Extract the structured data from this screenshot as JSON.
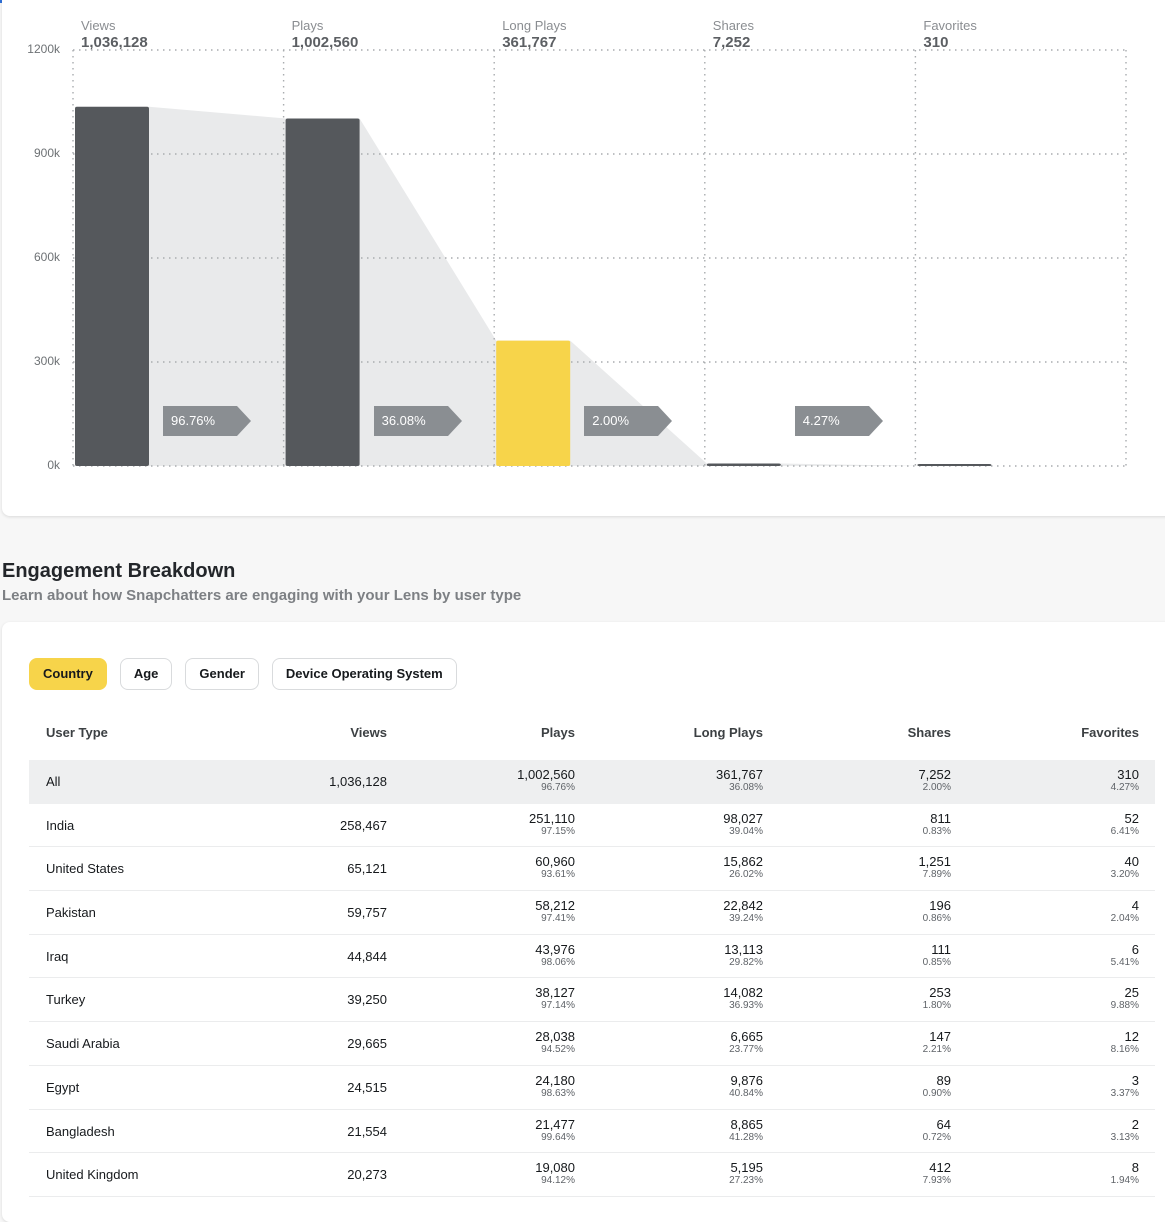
{
  "colors": {
    "accent": "#f7d44a",
    "bar": "#55585c",
    "funnel_fill": "#e9eaeb",
    "tag": "#8a8e92"
  },
  "chart_data": {
    "type": "bar",
    "categories": [
      "Views",
      "Plays",
      "Long Plays",
      "Shares",
      "Favorites"
    ],
    "values": [
      1036128,
      1002560,
      361767,
      7252,
      310
    ],
    "display_values": [
      "1,036,128",
      "1,002,560",
      "361,767",
      "7,252",
      "310"
    ],
    "highlight_index": 2,
    "conversion_rates": [
      "96.76%",
      "36.08%",
      "2.00%",
      "4.27%"
    ],
    "ylim": [
      0,
      1200000
    ],
    "yticks": [
      0,
      300000,
      600000,
      900000,
      1200000
    ],
    "ytick_labels": [
      "0k",
      "300k",
      "600k",
      "900k",
      "1200k"
    ],
    "grid": true
  },
  "section": {
    "title": "Engagement Breakdown",
    "subtitle": "Learn about how Snapchatters are engaging with your Lens by user type"
  },
  "filters": [
    "Country",
    "Age",
    "Gender",
    "Device Operating System"
  ],
  "active_filter": "Country",
  "table": {
    "headers": [
      "User Type",
      "Views",
      "Plays",
      "Long Plays",
      "Shares",
      "Favorites"
    ],
    "rows": [
      {
        "name": "All",
        "views": "1,036,128",
        "plays": "1,002,560",
        "plays_pct": "96.76%",
        "long": "361,767",
        "long_pct": "36.08%",
        "shares": "7,252",
        "shares_pct": "2.00%",
        "fav": "310",
        "fav_pct": "4.27%"
      },
      {
        "name": "India",
        "views": "258,467",
        "plays": "251,110",
        "plays_pct": "97.15%",
        "long": "98,027",
        "long_pct": "39.04%",
        "shares": "811",
        "shares_pct": "0.83%",
        "fav": "52",
        "fav_pct": "6.41%"
      },
      {
        "name": "United States",
        "views": "65,121",
        "plays": "60,960",
        "plays_pct": "93.61%",
        "long": "15,862",
        "long_pct": "26.02%",
        "shares": "1,251",
        "shares_pct": "7.89%",
        "fav": "40",
        "fav_pct": "3.20%"
      },
      {
        "name": "Pakistan",
        "views": "59,757",
        "plays": "58,212",
        "plays_pct": "97.41%",
        "long": "22,842",
        "long_pct": "39.24%",
        "shares": "196",
        "shares_pct": "0.86%",
        "fav": "4",
        "fav_pct": "2.04%"
      },
      {
        "name": "Iraq",
        "views": "44,844",
        "plays": "43,976",
        "plays_pct": "98.06%",
        "long": "13,113",
        "long_pct": "29.82%",
        "shares": "111",
        "shares_pct": "0.85%",
        "fav": "6",
        "fav_pct": "5.41%"
      },
      {
        "name": "Turkey",
        "views": "39,250",
        "plays": "38,127",
        "plays_pct": "97.14%",
        "long": "14,082",
        "long_pct": "36.93%",
        "shares": "253",
        "shares_pct": "1.80%",
        "fav": "25",
        "fav_pct": "9.88%"
      },
      {
        "name": "Saudi Arabia",
        "views": "29,665",
        "plays": "28,038",
        "plays_pct": "94.52%",
        "long": "6,665",
        "long_pct": "23.77%",
        "shares": "147",
        "shares_pct": "2.21%",
        "fav": "12",
        "fav_pct": "8.16%"
      },
      {
        "name": "Egypt",
        "views": "24,515",
        "plays": "24,180",
        "plays_pct": "98.63%",
        "long": "9,876",
        "long_pct": "40.84%",
        "shares": "89",
        "shares_pct": "0.90%",
        "fav": "3",
        "fav_pct": "3.37%"
      },
      {
        "name": "Bangladesh",
        "views": "21,554",
        "plays": "21,477",
        "plays_pct": "99.64%",
        "long": "8,865",
        "long_pct": "41.28%",
        "shares": "64",
        "shares_pct": "0.72%",
        "fav": "2",
        "fav_pct": "3.13%"
      },
      {
        "name": "United Kingdom",
        "views": "20,273",
        "plays": "19,080",
        "plays_pct": "94.12%",
        "long": "5,195",
        "long_pct": "27.23%",
        "shares": "412",
        "shares_pct": "7.93%",
        "fav": "8",
        "fav_pct": "1.94%"
      }
    ]
  }
}
